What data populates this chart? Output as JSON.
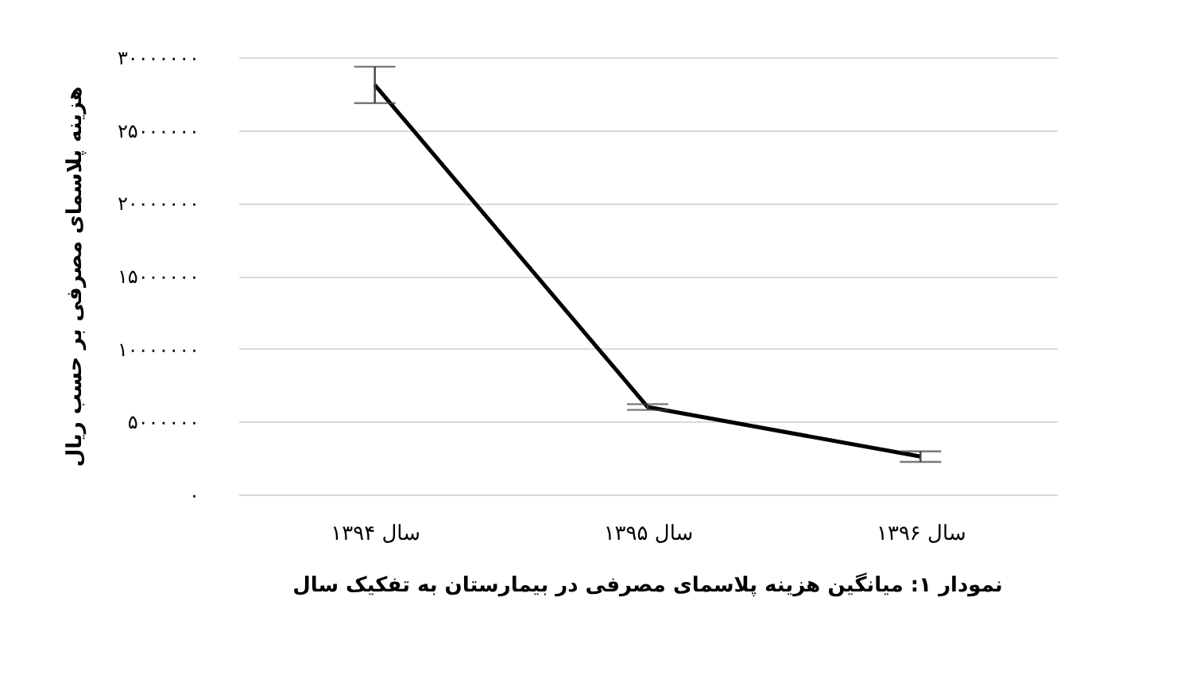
{
  "chart_data": {
    "type": "line",
    "ylabel": "هزینه پلاسمای مصرفی بر حسب ریال",
    "annotations": [
      "نمودار ۱: میانگین هزینه پلاسمای مصرفی در بیمارستان به تفکیک سال"
    ],
    "categories": [
      "سال ۱۳۹۴",
      "سال ۱۳۹۵",
      "سال ۱۳۹۶"
    ],
    "series": [
      {
        "color": "#000000",
        "values": [
          28100000,
          6000000,
          2600000
        ],
        "errors": [
          1250000,
          200000,
          360000
        ]
      }
    ],
    "ylim": [
      0,
      30000000
    ],
    "yticks": [
      {
        "value": 0,
        "label": "۰"
      },
      {
        "value": 5000000,
        "label": "۵۰۰۰۰۰۰"
      },
      {
        "value": 10000000,
        "label": "۱۰۰۰۰۰۰۰"
      },
      {
        "value": 15000000,
        "label": "۱۵۰۰۰۰۰۰"
      },
      {
        "value": 20000000,
        "label": "۲۰۰۰۰۰۰۰"
      },
      {
        "value": 25000000,
        "label": "۲۵۰۰۰۰۰۰"
      },
      {
        "value": 30000000,
        "label": "۳۰۰۰۰۰۰۰"
      }
    ],
    "grid": "y",
    "marker": "none",
    "line_style": "solid"
  }
}
